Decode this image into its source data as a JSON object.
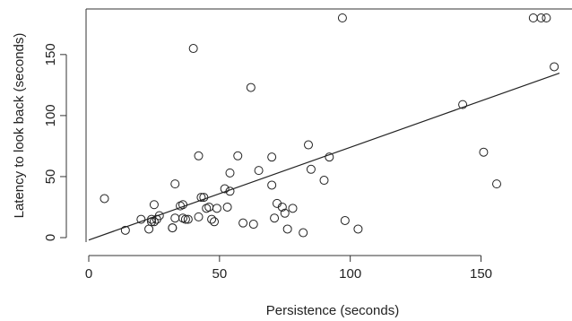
{
  "chart_data": {
    "type": "scatter",
    "title": "",
    "xlabel": "Persistence (seconds)",
    "ylabel": "Latency to look back (seconds)",
    "xlim": [
      0,
      180
    ],
    "ylim": [
      0,
      180
    ],
    "x_ticks": [
      0,
      50,
      100,
      150
    ],
    "y_ticks": [
      0,
      50,
      100,
      150
    ],
    "grid": false,
    "series": [
      {
        "points": [
          [
            6,
            32
          ],
          [
            14,
            6
          ],
          [
            20,
            15
          ],
          [
            23,
            7
          ],
          [
            24,
            13
          ],
          [
            24,
            15
          ],
          [
            25,
            27
          ],
          [
            25,
            13
          ],
          [
            26,
            15
          ],
          [
            27,
            18
          ],
          [
            32,
            8
          ],
          [
            32,
            8
          ],
          [
            33,
            16
          ],
          [
            33,
            44
          ],
          [
            35,
            26
          ],
          [
            36,
            27
          ],
          [
            36,
            16
          ],
          [
            37,
            15
          ],
          [
            38,
            15
          ],
          [
            40,
            155
          ],
          [
            42,
            17
          ],
          [
            42,
            67
          ],
          [
            43,
            33
          ],
          [
            44,
            33
          ],
          [
            45,
            24
          ],
          [
            46,
            25
          ],
          [
            47,
            15
          ],
          [
            48,
            13
          ],
          [
            49,
            24
          ],
          [
            52,
            40
          ],
          [
            53,
            25
          ],
          [
            54,
            38
          ],
          [
            54,
            53
          ],
          [
            57,
            67
          ],
          [
            59,
            12
          ],
          [
            62,
            123
          ],
          [
            63,
            11
          ],
          [
            65,
            55
          ],
          [
            70,
            66
          ],
          [
            70,
            43
          ],
          [
            71,
            16
          ],
          [
            72,
            28
          ],
          [
            74,
            25
          ],
          [
            75,
            20
          ],
          [
            76,
            7
          ],
          [
            78,
            24
          ],
          [
            82,
            4
          ],
          [
            84,
            76
          ],
          [
            85,
            56
          ],
          [
            90,
            47
          ],
          [
            92,
            66
          ],
          [
            97,
            180
          ],
          [
            98,
            14
          ],
          [
            103,
            7
          ],
          [
            143,
            109
          ],
          [
            151,
            70
          ],
          [
            156,
            44
          ],
          [
            170,
            180
          ],
          [
            173,
            180
          ],
          [
            175,
            180
          ],
          [
            178,
            140
          ]
        ]
      }
    ],
    "fit_line": {
      "intercept": -2,
      "slope": 0.76
    }
  }
}
